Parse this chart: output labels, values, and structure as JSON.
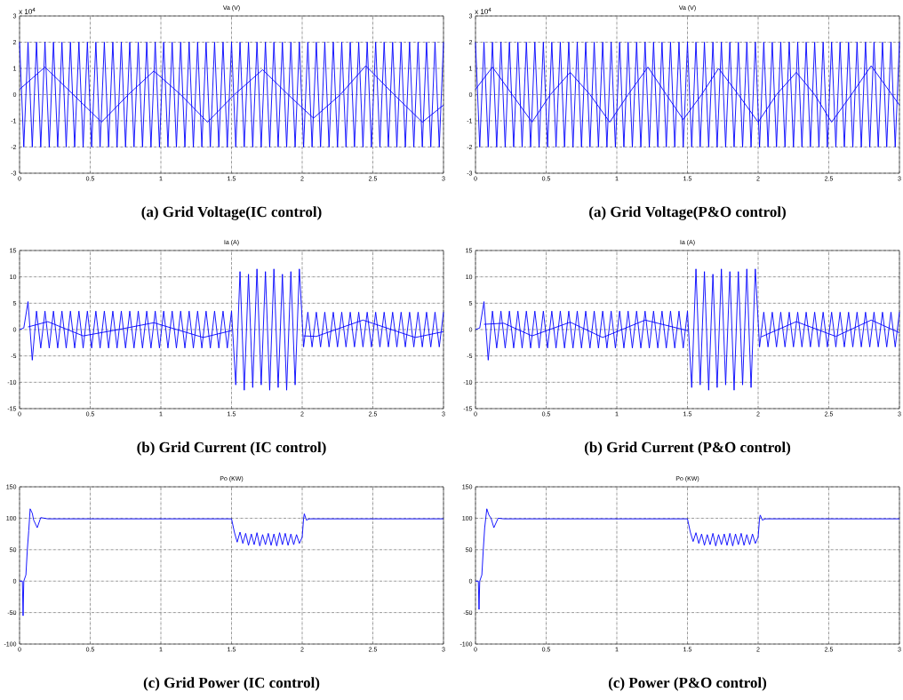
{
  "chart_data": [
    {
      "type": "line",
      "title": "Va (V)",
      "xlim": [
        0,
        3
      ],
      "xticks": [
        0,
        0.5,
        1,
        1.5,
        2,
        2.5,
        3
      ],
      "ylim": [
        -3,
        3
      ],
      "yticks": [
        -3,
        -2,
        -1,
        0,
        1,
        2,
        3
      ],
      "grid": true,
      "line_style": "solid",
      "x": [
        0,
        0.03,
        0.06,
        0.09,
        0.12,
        0.15,
        0.18,
        0.21,
        0.24,
        0.27,
        0.3,
        0.33,
        0.36,
        0.39,
        0.42,
        0.45,
        0.48,
        0.51,
        0.54,
        0.57,
        0.6,
        0.63,
        0.66,
        0.69,
        0.72,
        0.75,
        0.78,
        0.81,
        0.84,
        0.87,
        0.9,
        0.93,
        0.96,
        0.99,
        1.02,
        1.05,
        1.08,
        1.11,
        1.14,
        1.17,
        1.2,
        1.23,
        1.26,
        1.29,
        1.32,
        1.35,
        1.38,
        1.41,
        1.44,
        1.47,
        1.5,
        1.53,
        1.56,
        1.59,
        1.62,
        1.65,
        1.68,
        1.71,
        1.74,
        1.77,
        1.8,
        1.83,
        1.86,
        1.89,
        1.92,
        1.95,
        1.98,
        2.01,
        2.04,
        2.07,
        2.1,
        2.13,
        2.16,
        2.19,
        2.22,
        2.25,
        2.28,
        2.31,
        2.34,
        2.37,
        2.4,
        2.43,
        2.46,
        2.49,
        2.52,
        2.55,
        2.58,
        2.61,
        2.64,
        2.67,
        2.7,
        2.73,
        2.76,
        2.79,
        2.82,
        2.85,
        2.88,
        2.91,
        2.94,
        2.97,
        3
      ],
      "series": [
        {
          "color": "#0000ff",
          "values": [
            2,
            -2,
            2,
            -2,
            2,
            -2,
            2,
            -2,
            2,
            -2,
            2,
            -2,
            2,
            -2,
            2,
            -2,
            2,
            -2,
            2,
            -2,
            2,
            -2,
            2,
            -2,
            2,
            -2,
            2,
            -2,
            2,
            -2,
            2,
            -2,
            2,
            -2,
            2,
            -2,
            2,
            -2,
            2,
            -2,
            2,
            -2,
            2,
            -2,
            2,
            -2,
            2,
            -2,
            2,
            -2,
            2,
            -2,
            2,
            -2,
            2,
            -2,
            2,
            -2,
            2,
            -2,
            2,
            -2,
            2,
            -2,
            2,
            -2,
            2,
            -2,
            2,
            -2,
            2,
            -2,
            2,
            -2,
            2,
            -2,
            2,
            -2,
            2,
            -2,
            2,
            -2,
            2,
            -2,
            2,
            -2,
            2,
            -2,
            2,
            -2,
            2,
            -2,
            2,
            -2,
            2,
            -2,
            2,
            -2,
            2,
            -2,
            2
          ]
        },
        {
          "color": "#0000ff",
          "x": [
            0,
            0.18,
            0.38,
            0.58,
            0.77,
            0.95,
            1.14,
            1.33,
            1.52,
            1.72,
            1.9,
            2.08,
            2.27,
            2.45,
            2.65,
            2.85,
            3
          ],
          "values": [
            0.2,
            1.05,
            0,
            -1.05,
            0,
            0.9,
            0,
            -1.05,
            0,
            0.95,
            0,
            -0.9,
            0,
            1.1,
            0,
            -1.05,
            -0.4
          ]
        }
      ],
      "annotations": [
        "x 10$^{4}$",
        "(a) Grid Voltage(IC control)"
      ]
    },
    {
      "type": "line",
      "title": "Va (V)",
      "xlim": [
        0,
        3
      ],
      "xticks": [
        0,
        0.5,
        1,
        1.5,
        2,
        2.5,
        3
      ],
      "ylim": [
        -3,
        3
      ],
      "yticks": [
        -3,
        -2,
        -1,
        0,
        1,
        2,
        3
      ],
      "grid": true,
      "line_style": "solid",
      "x": [
        0,
        0.03,
        0.06,
        0.09,
        0.12,
        0.15,
        0.18,
        0.21,
        0.24,
        0.27,
        0.3,
        0.33,
        0.36,
        0.39,
        0.42,
        0.45,
        0.48,
        0.51,
        0.54,
        0.57,
        0.6,
        0.63,
        0.66,
        0.69,
        0.72,
        0.75,
        0.78,
        0.81,
        0.84,
        0.87,
        0.9,
        0.93,
        0.96,
        0.99,
        1.02,
        1.05,
        1.08,
        1.11,
        1.14,
        1.17,
        1.2,
        1.23,
        1.26,
        1.29,
        1.32,
        1.35,
        1.38,
        1.41,
        1.44,
        1.47,
        1.5,
        1.53,
        1.56,
        1.59,
        1.62,
        1.65,
        1.68,
        1.71,
        1.74,
        1.77,
        1.8,
        1.83,
        1.86,
        1.89,
        1.92,
        1.95,
        1.98,
        2.01,
        2.04,
        2.07,
        2.1,
        2.13,
        2.16,
        2.19,
        2.22,
        2.25,
        2.28,
        2.31,
        2.34,
        2.37,
        2.4,
        2.43,
        2.46,
        2.49,
        2.52,
        2.55,
        2.58,
        2.61,
        2.64,
        2.67,
        2.7,
        2.73,
        2.76,
        2.79,
        2.82,
        2.85,
        2.88,
        2.91,
        2.94,
        2.97,
        3
      ],
      "series": [
        {
          "color": "#0000ff",
          "values": [
            2,
            -2,
            2,
            -2,
            2,
            -2,
            2,
            -2,
            2,
            -2,
            2,
            -2,
            2,
            -2,
            2,
            -2,
            2,
            -2,
            2,
            -2,
            2,
            -2,
            2,
            -2,
            2,
            -2,
            2,
            -2,
            2,
            -2,
            2,
            -2,
            2,
            -2,
            2,
            -2,
            2,
            -2,
            2,
            -2,
            2,
            -2,
            2,
            -2,
            2,
            -2,
            2,
            -2,
            2,
            -2,
            2,
            -2,
            2,
            -2,
            2,
            -2,
            2,
            -2,
            2,
            -2,
            2,
            -2,
            2,
            -2,
            2,
            -2,
            2,
            -2,
            2,
            -2,
            2,
            -2,
            2,
            -2,
            2,
            -2,
            2,
            -2,
            2,
            -2,
            2,
            -2,
            2,
            -2,
            2,
            -2,
            2,
            -2,
            2,
            -2,
            2,
            -2,
            2,
            -2,
            2,
            -2,
            2,
            -2,
            2,
            -2,
            2
          ]
        },
        {
          "color": "#0000ff",
          "x": [
            0,
            0.12,
            0.26,
            0.4,
            0.53,
            0.67,
            0.81,
            0.95,
            1.08,
            1.22,
            1.35,
            1.47,
            1.6,
            1.72,
            1.86,
            2.0,
            2.13,
            2.27,
            2.4,
            2.52,
            2.66,
            2.8,
            3
          ],
          "values": [
            0.2,
            1.05,
            0,
            -1.05,
            0,
            0.85,
            0,
            -1.05,
            0,
            1.05,
            0,
            -0.95,
            0,
            1.0,
            0,
            -1.05,
            0,
            0.85,
            0,
            -1.05,
            0,
            1.1,
            -0.4
          ]
        }
      ],
      "annotations": [
        "x 10$^{4}$",
        "(a) Grid Voltage(P&O control)"
      ]
    },
    {
      "type": "line",
      "title": "Ia (A)",
      "xlim": [
        0,
        3
      ],
      "xticks": [
        0,
        0.5,
        1,
        1.5,
        2,
        2.5,
        3
      ],
      "ylim": [
        -15,
        15
      ],
      "yticks": [
        -15,
        -10,
        -5,
        0,
        5,
        10,
        15
      ],
      "grid": true,
      "line_style": "solid",
      "x": [
        0,
        0.03,
        0.06,
        0.09,
        0.12,
        0.15,
        0.18,
        0.21,
        0.24,
        0.27,
        0.3,
        0.33,
        0.36,
        0.39,
        0.42,
        0.45,
        0.48,
        0.51,
        0.54,
        0.57,
        0.6,
        0.63,
        0.66,
        0.69,
        0.72,
        0.75,
        0.78,
        0.81,
        0.84,
        0.87,
        0.9,
        0.93,
        0.96,
        0.99,
        1.02,
        1.05,
        1.08,
        1.11,
        1.14,
        1.17,
        1.2,
        1.23,
        1.26,
        1.29,
        1.32,
        1.35,
        1.38,
        1.41,
        1.44,
        1.47,
        1.5,
        1.53,
        1.56,
        1.59,
        1.62,
        1.65,
        1.68,
        1.71,
        1.74,
        1.77,
        1.8,
        1.83,
        1.86,
        1.89,
        1.92,
        1.95,
        1.98,
        2.01,
        2.04,
        2.07,
        2.1,
        2.13,
        2.16,
        2.19,
        2.22,
        2.25,
        2.28,
        2.31,
        2.34,
        2.37,
        2.4,
        2.43,
        2.46,
        2.49,
        2.52,
        2.55,
        2.58,
        2.61,
        2.64,
        2.67,
        2.7,
        2.73,
        2.76,
        2.79,
        2.82,
        2.85,
        2.88,
        2.91,
        2.94,
        2.97,
        3
      ],
      "series": [
        {
          "color": "#0000ff",
          "values": [
            0,
            0.3,
            5.3,
            -5.8,
            3.5,
            -3.5,
            3.5,
            -3.5,
            3.5,
            -3.5,
            3.5,
            -3.5,
            3.5,
            -3.5,
            3.5,
            -3.5,
            3.5,
            -3.5,
            3.5,
            -3.5,
            3.5,
            -3.5,
            3.5,
            -3.5,
            3.5,
            -3.5,
            3.5,
            -3.5,
            3.5,
            -3.5,
            3.5,
            -3.5,
            3.5,
            -3.5,
            3.5,
            -3.5,
            3.5,
            -3.5,
            3.5,
            -3.5,
            3.5,
            -3.5,
            3.5,
            -3.5,
            3.5,
            -3.5,
            3.5,
            -3.5,
            3.5,
            -3.5,
            3.5,
            -10.5,
            11,
            -11.5,
            10.5,
            -11,
            11.5,
            -10.5,
            11,
            -11.5,
            11.5,
            -11,
            10.5,
            -11.5,
            11,
            -10.5,
            11.5,
            -3.3,
            3.3,
            -3.3,
            3.3,
            -3.3,
            3.3,
            -3.3,
            3.3,
            -3.3,
            3.3,
            -3.3,
            3.3,
            -3.3,
            3.3,
            -3.3,
            3.3,
            -3.3,
            3.3,
            -3.3,
            3.3,
            -3.3,
            3.3,
            -3.3,
            3.3,
            -3.3,
            3.3,
            -3.3,
            3.3,
            -3.3,
            3.3,
            -3.3,
            3.3,
            -3.3,
            3.3
          ]
        },
        {
          "color": "#0000ff",
          "x": [
            0.06,
            0.2,
            0.45,
            0.7,
            0.95,
            1.3,
            1.5,
            1.75,
            2.01,
            2.1,
            2.43,
            2.8,
            3
          ],
          "values": [
            0.5,
            1.5,
            -1.2,
            0,
            1.3,
            -1.5,
            -0.2,
            null,
            -1.2,
            -1.3,
            1.8,
            -1.5,
            -0.4
          ]
        }
      ],
      "annotations": [
        "(b) Grid Current (IC control)"
      ]
    },
    {
      "type": "line",
      "title": "Ia (A)",
      "xlim": [
        0,
        3
      ],
      "xticks": [
        0,
        0.5,
        1,
        1.5,
        2,
        2.5,
        3
      ],
      "ylim": [
        -15,
        15
      ],
      "yticks": [
        -15,
        -10,
        -5,
        0,
        5,
        10,
        15
      ],
      "grid": true,
      "line_style": "solid",
      "x": [
        0,
        0.03,
        0.06,
        0.09,
        0.12,
        0.15,
        0.18,
        0.21,
        0.24,
        0.27,
        0.3,
        0.33,
        0.36,
        0.39,
        0.42,
        0.45,
        0.48,
        0.51,
        0.54,
        0.57,
        0.6,
        0.63,
        0.66,
        0.69,
        0.72,
        0.75,
        0.78,
        0.81,
        0.84,
        0.87,
        0.9,
        0.93,
        0.96,
        0.99,
        1.02,
        1.05,
        1.08,
        1.11,
        1.14,
        1.17,
        1.2,
        1.23,
        1.26,
        1.29,
        1.32,
        1.35,
        1.38,
        1.41,
        1.44,
        1.47,
        1.5,
        1.53,
        1.56,
        1.59,
        1.62,
        1.65,
        1.68,
        1.71,
        1.74,
        1.77,
        1.8,
        1.83,
        1.86,
        1.89,
        1.92,
        1.95,
        1.98,
        2.01,
        2.04,
        2.07,
        2.1,
        2.13,
        2.16,
        2.19,
        2.22,
        2.25,
        2.28,
        2.31,
        2.34,
        2.37,
        2.4,
        2.43,
        2.46,
        2.49,
        2.52,
        2.55,
        2.58,
        2.61,
        2.64,
        2.67,
        2.7,
        2.73,
        2.76,
        2.79,
        2.82,
        2.85,
        2.88,
        2.91,
        2.94,
        2.97,
        3
      ],
      "series": [
        {
          "color": "#0000ff",
          "values": [
            0,
            0.3,
            5.3,
            -5.8,
            3.5,
            -3.5,
            3.5,
            -3.5,
            3.5,
            -3.5,
            3.5,
            -3.5,
            3.5,
            -3.5,
            3.5,
            -3.5,
            3.5,
            -3.5,
            3.5,
            -3.5,
            3.5,
            -3.5,
            3.5,
            -3.5,
            3.5,
            -3.5,
            3.5,
            -3.5,
            3.5,
            -3.5,
            3.5,
            -3.5,
            3.5,
            -3.5,
            3.5,
            -3.5,
            3.5,
            -3.5,
            3.5,
            -3.5,
            3.5,
            -3.5,
            3.5,
            -3.5,
            3.5,
            -3.5,
            3.5,
            -3.5,
            3.5,
            -3.5,
            3.5,
            -11,
            11.5,
            -10.5,
            11,
            -11.5,
            10.5,
            -11,
            11.5,
            -10.5,
            11,
            -11.5,
            11,
            -10.5,
            11.5,
            -11,
            11.5,
            -3.3,
            3.3,
            -3.3,
            3.3,
            -3.3,
            3.3,
            -3.3,
            3.3,
            -3.3,
            3.3,
            -3.3,
            3.3,
            -3.3,
            3.3,
            -3.3,
            3.3,
            -3.3,
            3.3,
            -3.3,
            3.3,
            -3.3,
            3.3,
            -3.3,
            3.3,
            -3.3,
            3.3,
            -3.3,
            3.3,
            -3.3,
            3.3,
            -3.3,
            3.3,
            -3.3,
            3.3
          ]
        },
        {
          "color": "#0000ff",
          "x": [
            0.06,
            0.2,
            0.4,
            0.67,
            0.9,
            1.2,
            1.5,
            1.75,
            2.02,
            2.27,
            2.55,
            2.8,
            3
          ],
          "values": [
            1,
            1.2,
            -1.2,
            1.4,
            -1.5,
            1.8,
            -0.2,
            null,
            -1.4,
            1.5,
            -1.3,
            1.8,
            -0.6
          ]
        }
      ],
      "annotations": [
        "(b) Grid Current (P&O control)"
      ]
    },
    {
      "type": "line",
      "title": "Po (KW)",
      "xlim": [
        0,
        3
      ],
      "xticks": [
        0,
        0.5,
        1,
        1.5,
        2,
        2.5,
        3
      ],
      "ylim": [
        -100,
        150
      ],
      "yticks": [
        -100,
        -50,
        0,
        50,
        100,
        150
      ],
      "grid": true,
      "line_style": "solid",
      "x": [
        0,
        0.02,
        0.025,
        0.03,
        0.045,
        0.055,
        0.065,
        0.075,
        0.09,
        0.1,
        0.125,
        0.15,
        0.2,
        1.5,
        1.52,
        1.54,
        1.56,
        1.58,
        1.6,
        1.62,
        1.64,
        1.66,
        1.68,
        1.7,
        1.72,
        1.74,
        1.76,
        1.78,
        1.8,
        1.82,
        1.84,
        1.86,
        1.88,
        1.9,
        1.92,
        1.94,
        1.96,
        1.98,
        2.0,
        2.01,
        2.015,
        2.03,
        2.05,
        3
      ],
      "series": [
        {
          "color": "#0000ff",
          "values": [
            0,
            0,
            -55,
            0,
            10,
            50,
            80,
            115,
            108,
            97,
            85,
            101,
            99,
            99,
            78,
            62,
            78,
            60,
            76,
            57,
            75,
            58,
            77,
            56,
            74,
            58,
            76,
            57,
            75,
            56,
            77,
            58,
            76,
            57,
            75,
            58,
            74,
            60,
            70,
            100,
            107,
            97,
            99,
            99
          ]
        }
      ],
      "annotations": [
        "(c) Grid Power (IC control)"
      ]
    },
    {
      "type": "line",
      "title": "Po (KW)",
      "xlim": [
        0,
        3
      ],
      "xticks": [
        0,
        0.5,
        1,
        1.5,
        2,
        2.5,
        3
      ],
      "ylim": [
        -100,
        150
      ],
      "yticks": [
        -100,
        -50,
        0,
        50,
        100,
        150
      ],
      "grid": true,
      "line_style": "solid",
      "x": [
        0,
        0.02,
        0.025,
        0.03,
        0.045,
        0.055,
        0.065,
        0.08,
        0.095,
        0.11,
        0.13,
        0.16,
        0.2,
        1.5,
        1.52,
        1.54,
        1.56,
        1.58,
        1.6,
        1.62,
        1.64,
        1.66,
        1.68,
        1.7,
        1.72,
        1.74,
        1.76,
        1.78,
        1.8,
        1.82,
        1.84,
        1.86,
        1.88,
        1.9,
        1.92,
        1.94,
        1.96,
        1.98,
        2.0,
        2.01,
        2.015,
        2.03,
        2.05,
        3
      ],
      "series": [
        {
          "color": "#0000ff",
          "values": [
            0,
            0,
            -45,
            0,
            10,
            50,
            85,
            115,
            105,
            100,
            85,
            100,
            99,
            99,
            78,
            63,
            77,
            60,
            75,
            57,
            74,
            58,
            76,
            56,
            74,
            58,
            75,
            57,
            76,
            56,
            75,
            58,
            76,
            57,
            74,
            58,
            75,
            60,
            70,
            100,
            105,
            97,
            99,
            99
          ]
        }
      ],
      "annotations": [
        "(c) Power (P&O control)"
      ]
    }
  ]
}
